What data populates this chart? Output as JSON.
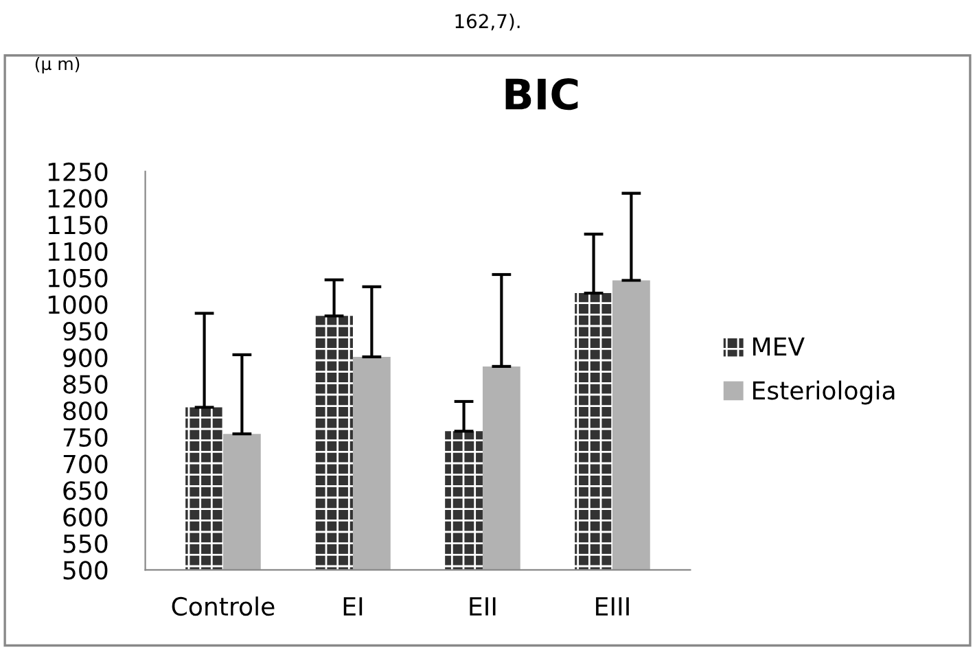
{
  "chart_data": {
    "type": "bar",
    "title": "BIC",
    "annotations": [
      "162,7).",
      "(µ m)"
    ],
    "categories": [
      "Controle",
      "EI",
      "EII",
      "EIII"
    ],
    "series": [
      {
        "name": "MEV",
        "color": "#333333",
        "values": [
          806,
          978,
          761,
          1021
        ],
        "errors": [
          [
            806,
            983
          ],
          [
            978,
            1046
          ],
          [
            761,
            817
          ],
          [
            1021,
            1132
          ]
        ]
      },
      {
        "name": "Esteriologia",
        "color": "#b2b2b2",
        "values": [
          756,
          901,
          883,
          1045
        ],
        "errors": [
          [
            756,
            905
          ],
          [
            901,
            1033
          ],
          [
            883,
            1056
          ],
          [
            1045,
            1209
          ]
        ]
      }
    ],
    "ylim": [
      500,
      1250
    ],
    "yticks": [
      500,
      550,
      600,
      650,
      700,
      750,
      800,
      850,
      900,
      950,
      1000,
      1050,
      1100,
      1150,
      1200,
      1250
    ],
    "grid": false,
    "legend": "right"
  }
}
